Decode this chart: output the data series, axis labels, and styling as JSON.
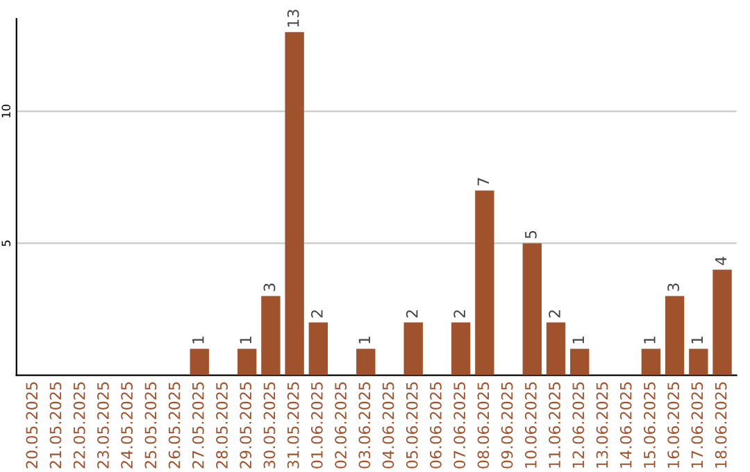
{
  "chart_data": {
    "type": "bar",
    "categories": [
      "20.05.2025",
      "21.05.2025",
      "22.05.2025",
      "23.05.2025",
      "24.05.2025",
      "25.05.2025",
      "26.05.2025",
      "27.05.2025",
      "28.05.2025",
      "29.05.2025",
      "30.05.2025",
      "31.05.2025",
      "01.06.2025",
      "02.06.2025",
      "03.06.2025",
      "04.06.2025",
      "05.06.2025",
      "06.06.2025",
      "07.06.2025",
      "08.06.2025",
      "09.06.2025",
      "10.06.2025",
      "11.06.2025",
      "12.06.2025",
      "13.06.2025",
      "14.06.2025",
      "15.06.2025",
      "16.06.2025",
      "17.06.2025",
      "18.06.2025"
    ],
    "values": [
      0,
      0,
      0,
      0,
      0,
      0,
      0,
      1,
      0,
      1,
      3,
      13,
      2,
      0,
      1,
      0,
      2,
      0,
      2,
      7,
      0,
      5,
      2,
      1,
      0,
      0,
      1,
      3,
      1,
      4
    ],
    "value_labels": [
      null,
      null,
      null,
      null,
      null,
      null,
      null,
      "1",
      null,
      "1",
      "3",
      "13",
      "2",
      null,
      "1",
      null,
      "2",
      null,
      "2",
      "7",
      null,
      "5",
      "2",
      "1",
      null,
      null,
      "1",
      "3",
      "1",
      "4"
    ],
    "color": "#a0522d",
    "ylim": [
      0,
      13.5
    ],
    "yticks": [
      5,
      10
    ],
    "grid": "y"
  }
}
